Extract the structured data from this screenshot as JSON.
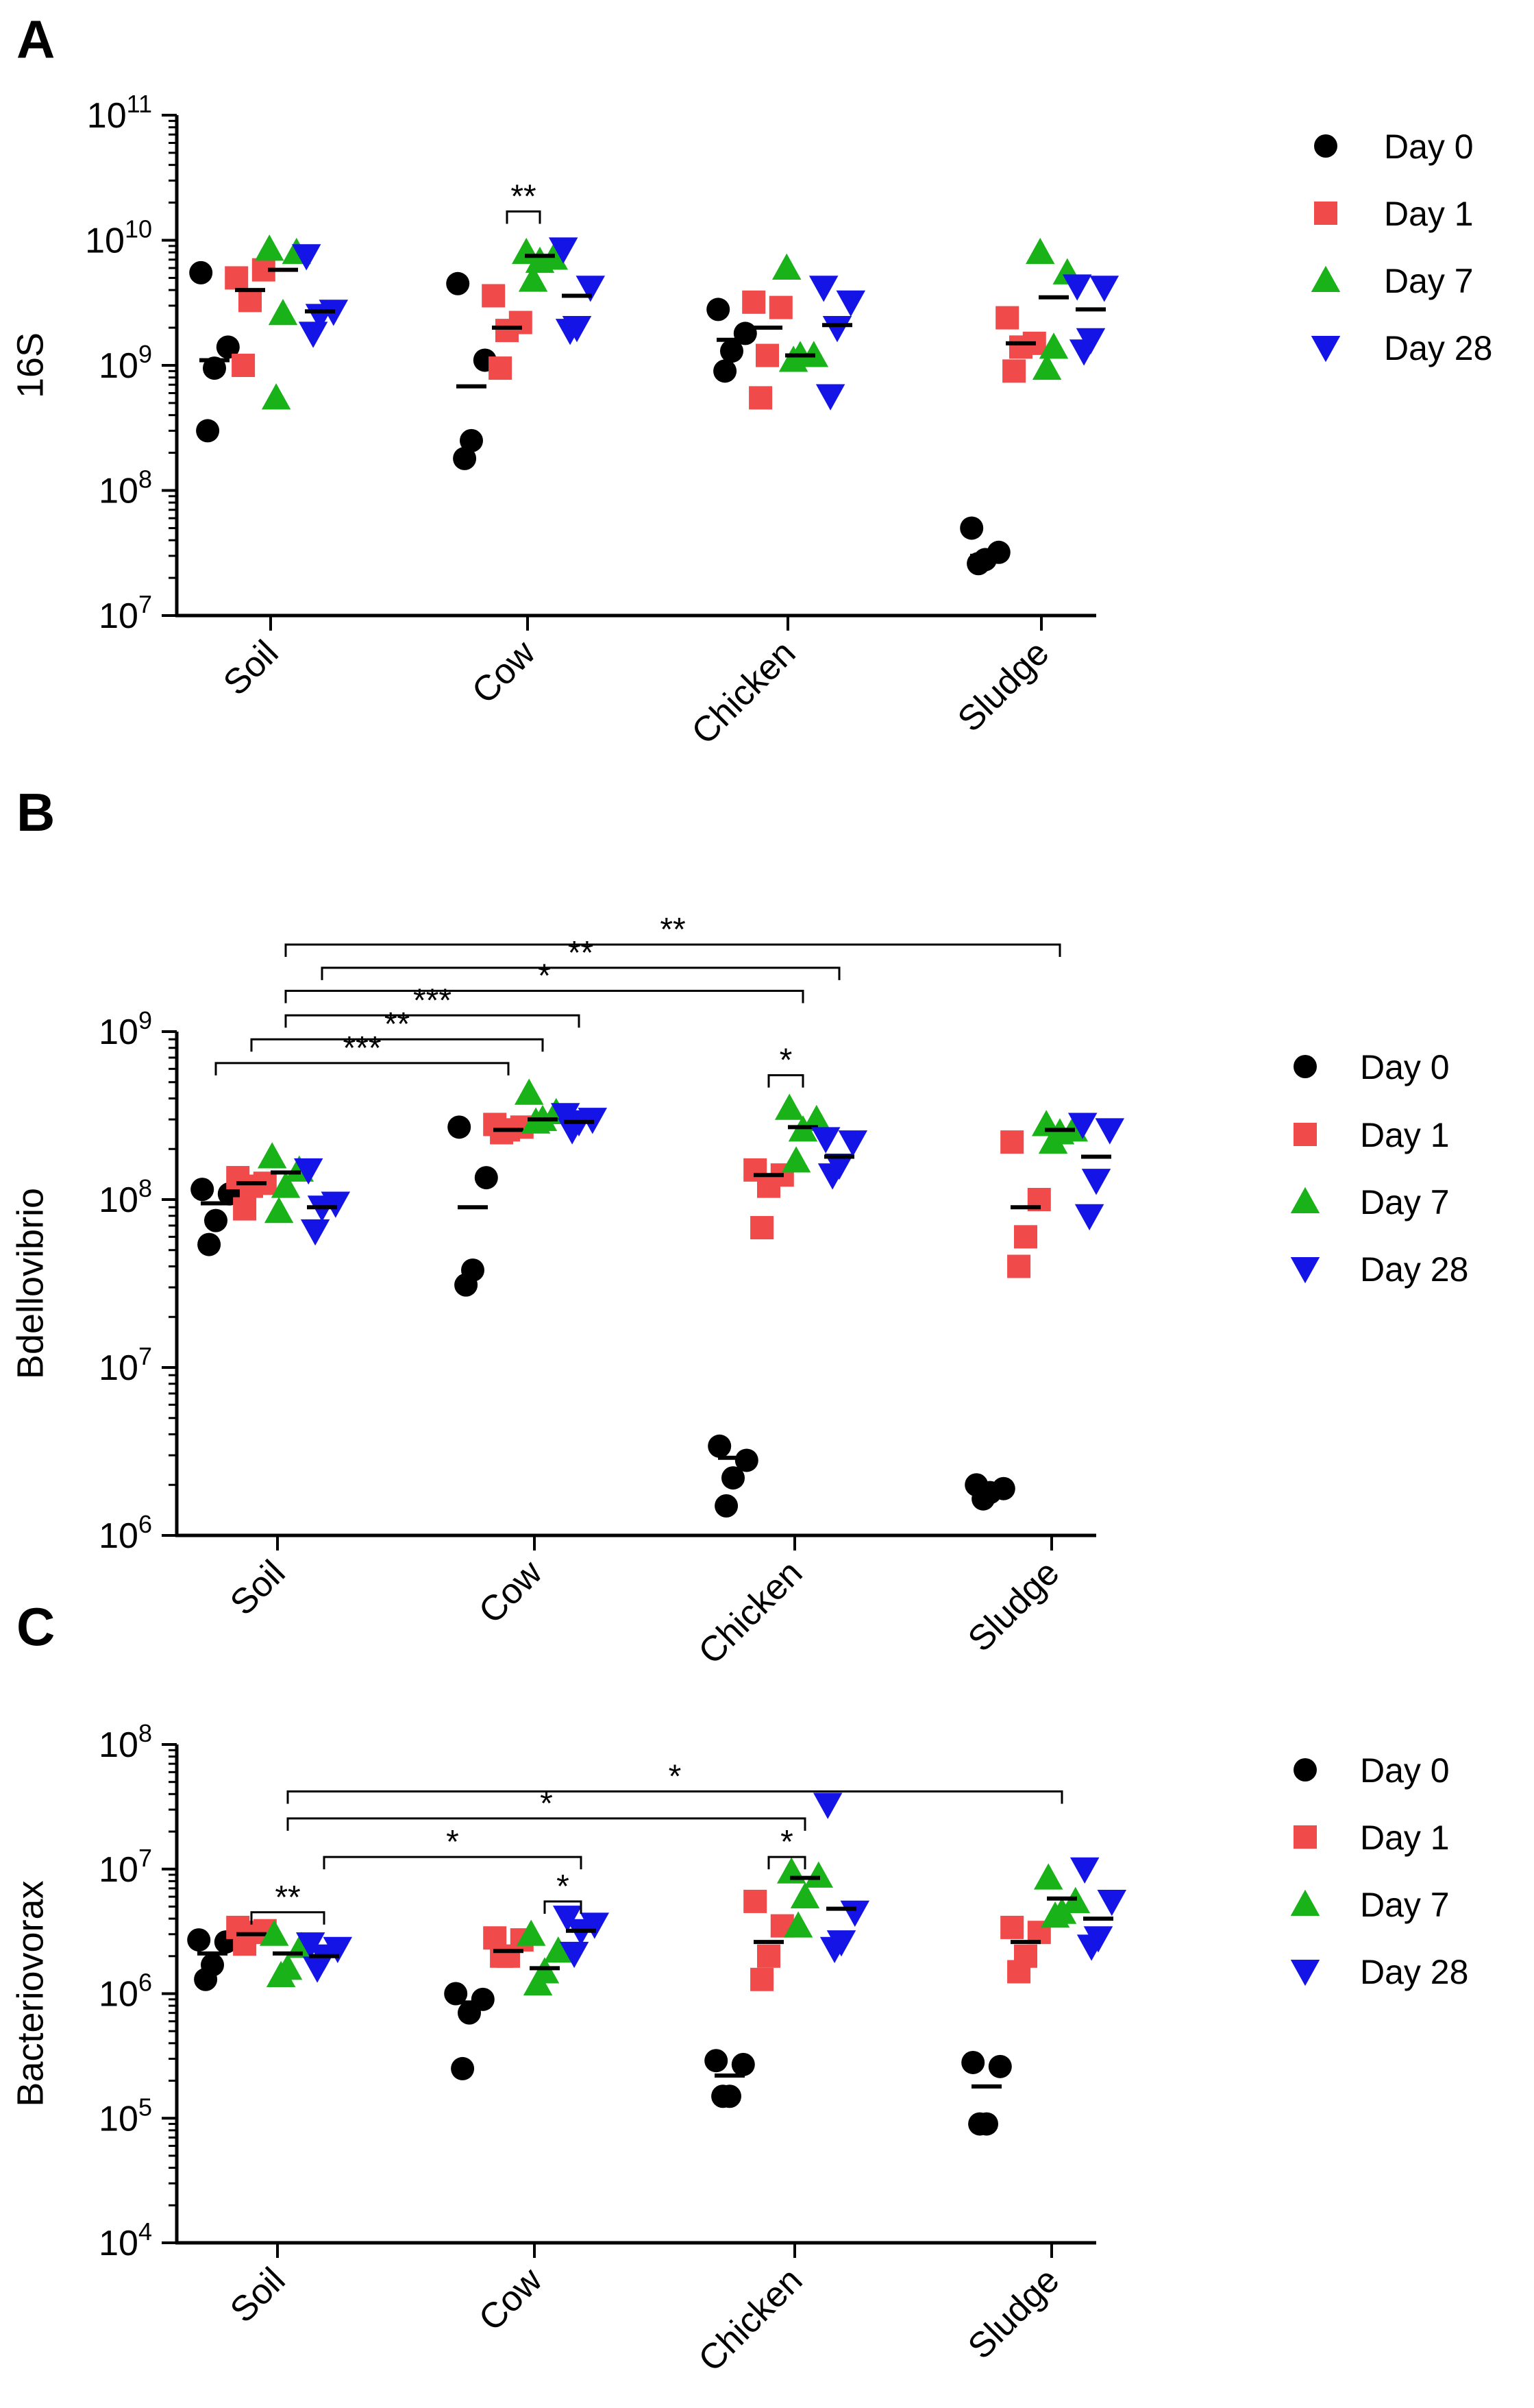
{
  "groups": [
    "Day 0",
    "Day 1",
    "Day 7",
    "Day 28"
  ],
  "colors": {
    "Day 0": "#000000",
    "Day 1": "#F04A4A",
    "Day 7": "#19B219",
    "Day 28": "#1414E6"
  },
  "markers": {
    "Day 0": "circle",
    "Day 1": "square",
    "Day 7": "triangle-up",
    "Day 28": "triangle-down"
  },
  "chart_data": [
    {
      "panel": "A",
      "type": "scatter",
      "ylabel": "16S",
      "yscale": "log",
      "ylim_exp": [
        7,
        11
      ],
      "categories": [
        "Soil",
        "Cow",
        "Chicken",
        "Sludge"
      ],
      "series": [
        {
          "name": "Day 0",
          "points": [
            [
              5500000000.0,
              1400000000.0,
              950000000.0,
              300000000.0
            ],
            [
              4500000000.0,
              1100000000.0,
              250000000.0,
              180000000.0
            ],
            [
              2800000000.0,
              1800000000.0,
              1300000000.0,
              900000000.0
            ],
            [
              50000000.0,
              32000000.0,
              28000000.0,
              26000000.0
            ]
          ],
          "means": [
            1100000000.0,
            680000000.0,
            1600000000.0,
            30000000.0
          ]
        },
        {
          "name": "Day 1",
          "points": [
            [
              5000000000.0,
              5800000000.0,
              3300000000.0,
              1000000000.0
            ],
            [
              3600000000.0,
              2200000000.0,
              1900000000.0,
              950000000.0
            ],
            [
              3200000000.0,
              2900000000.0,
              1200000000.0,
              550000000.0
            ],
            [
              2400000000.0,
              1500000000.0,
              1400000000.0,
              900000000.0
            ]
          ],
          "means": [
            4000000000.0,
            2000000000.0,
            2000000000.0,
            1500000000.0
          ]
        },
        {
          "name": "Day 7",
          "points": [
            [
              8500000000.0,
              8000000000.0,
              2600000000.0,
              550000000.0
            ],
            [
              8000000000.0,
              7200000000.0,
              6800000000.0,
              4800000000.0
            ],
            [
              6000000000.0,
              1200000000.0,
              1200000000.0,
              1100000000.0
            ],
            [
              8000000000.0,
              5500000000.0,
              1400000000.0,
              950000000.0
            ]
          ],
          "means": [
            5800000000.0,
            7500000000.0,
            1200000000.0,
            3500000000.0
          ]
        },
        {
          "name": "Day 28",
          "points": [
            [
              7500000000.0,
              2700000000.0,
              2500000000.0,
              1800000000.0
            ],
            [
              8500000000.0,
              4200000000.0,
              2000000000.0,
              1900000000.0
            ],
            [
              4200000000.0,
              3200000000.0,
              2000000000.0,
              570000000.0
            ],
            [
              4300000000.0,
              4200000000.0,
              1600000000.0,
              1300000000.0
            ]
          ],
          "means": [
            2700000000.0,
            3600000000.0,
            2100000000.0,
            2800000000.0
          ]
        }
      ],
      "ytick_labels": [
        {
          "base": "10",
          "exp": "7"
        },
        {
          "base": "10",
          "exp": "8"
        },
        {
          "base": "10",
          "exp": "9"
        },
        {
          "base": "10",
          "exp": "10"
        },
        {
          "base": "10",
          "exp": "11"
        }
      ],
      "significance": [
        {
          "from": [
            1,
            "Day 1"
          ],
          "to": [
            1,
            "Day 7"
          ],
          "label": "**",
          "y": 17000000000.0
        }
      ]
    },
    {
      "panel": "B",
      "type": "scatter",
      "ylabel": "Bdellovibrio",
      "yscale": "log",
      "ylim_exp": [
        6,
        9
      ],
      "categories": [
        "Soil",
        "Cow",
        "Chicken",
        "Sludge"
      ],
      "series": [
        {
          "name": "Day 0",
          "points": [
            [
              115000000.0,
              108000000.0,
              75000000.0,
              54000000.0
            ],
            [
              270000000.0,
              135000000.0,
              38000000.0,
              31000000.0
            ],
            [
              3400000.0,
              2800000.0,
              2200000.0,
              1500000.0
            ],
            [
              2000000.0,
              1900000.0,
              1800000.0,
              1650000.0
            ]
          ],
          "means": [
            95000000.0,
            90000000.0,
            2900000.0,
            1800000.0
          ]
        },
        {
          "name": "Day 1",
          "points": [
            [
              135000000.0,
              125000000.0,
              120000000.0,
              88000000.0
            ],
            [
              280000000.0,
              270000000.0,
              260000000.0,
              250000000.0
            ],
            [
              150000000.0,
              140000000.0,
              120000000.0,
              68000000.0
            ],
            [
              220000000.0,
              100000000.0,
              60000000.0,
              40000000.0
            ]
          ],
          "means": [
            125000000.0,
            260000000.0,
            140000000.0,
            90000000.0
          ]
        },
        {
          "name": "Day 7",
          "points": [
            [
              180000000.0,
              150000000.0,
              120000000.0,
              85000000.0
            ],
            [
              430000000.0,
              330000000.0,
              300000000.0,
              290000000.0
            ],
            [
              350000000.0,
              300000000.0,
              260000000.0,
              170000000.0
            ],
            [
              280000000.0,
              260000000.0,
              250000000.0,
              220000000.0
            ]
          ],
          "means": [
            145000000.0,
            300000000.0,
            270000000.0,
            260000000.0
          ]
        },
        {
          "name": "Day 28",
          "points": [
            [
              150000000.0,
              95000000.0,
              90000000.0,
              65000000.0
            ],
            [
              320000000.0,
              300000000.0,
              290000000.0,
              260000000.0
            ],
            [
              230000000.0,
              220000000.0,
              160000000.0,
              140000000.0
            ],
            [
              280000000.0,
              260000000.0,
              130000000.0,
              80000000.0
            ]
          ],
          "means": [
            90000000.0,
            290000000.0,
            180000000.0,
            180000000.0
          ]
        }
      ],
      "ytick_labels": [
        {
          "base": "10",
          "exp": "6"
        },
        {
          "base": "10",
          "exp": "7"
        },
        {
          "base": "10",
          "exp": "8"
        },
        {
          "base": "10",
          "exp": "9"
        }
      ],
      "significance": [
        {
          "from": [
            0,
            "Day 0"
          ],
          "to": [
            1,
            "Day 1"
          ],
          "label": "***",
          "y": 650000000.0
        },
        {
          "from": [
            0,
            "Day 1"
          ],
          "to": [
            1,
            "Day 7"
          ],
          "label": "**",
          "y": 900000000.0
        },
        {
          "from": [
            0,
            "Day 7"
          ],
          "to": [
            1,
            "Day 28"
          ],
          "label": "***",
          "y": 1250000000.0
        },
        {
          "from": [
            0,
            "Day 7"
          ],
          "to": [
            2,
            "Day 7"
          ],
          "label": "*",
          "y": 1750000000.0
        },
        {
          "from": [
            0,
            "Day 28"
          ],
          "to": [
            2,
            "Day 28"
          ],
          "label": "**",
          "y": 2400000000.0
        },
        {
          "from": [
            0,
            "Day 7"
          ],
          "to": [
            3,
            "Day 7"
          ],
          "label": "**",
          "y": 3300000000.0
        },
        {
          "from": [
            2,
            "Day 1"
          ],
          "to": [
            2,
            "Day 7"
          ],
          "label": "*",
          "y": 550000000.0
        }
      ]
    },
    {
      "panel": "C",
      "type": "scatter",
      "ylabel": "Bacteriovorax",
      "yscale": "log",
      "ylim_exp": [
        4,
        8
      ],
      "categories": [
        "Soil",
        "Cow",
        "Chicken",
        "Sludge"
      ],
      "series": [
        {
          "name": "Day 0",
          "points": [
            [
              2700000.0,
              2600000.0,
              1700000.0,
              1300000.0
            ],
            [
              1000000.0,
              900000.0,
              700000.0,
              250000.0
            ],
            [
              290000.0,
              270000.0,
              150000.0,
              150000.0
            ],
            [
              280000.0,
              260000.0,
              90000.0,
              90000.0
            ]
          ],
          "means": [
            2100000.0,
            850000.0,
            220000.0,
            180000.0
          ]
        },
        {
          "name": "Day 1",
          "points": [
            [
              3400000.0,
              3200000.0,
              3100000.0,
              2500000.0
            ],
            [
              2800000.0,
              2700000.0,
              2000000.0,
              2000000.0
            ],
            [
              5500000.0,
              3500000.0,
              2000000.0,
              1300000.0
            ],
            [
              3400000.0,
              3100000.0,
              2000000.0,
              1500000.0
            ]
          ],
          "means": [
            3000000.0,
            2200000.0,
            2600000.0,
            2600000.0
          ]
        },
        {
          "name": "Day 7",
          "points": [
            [
              3000000.0,
              2400000.0,
              1600000.0,
              1400000.0
            ],
            [
              3000000.0,
              2200000.0,
              1500000.0,
              1200000.0
            ],
            [
              9500000.0,
              8800000.0,
              6000000.0,
              3500000.0
            ],
            [
              8500000.0,
              5500000.0,
              4500000.0,
              4200000.0
            ]
          ],
          "means": [
            2100000.0,
            1600000.0,
            8500000.0,
            5800000.0
          ]
        },
        {
          "name": "Day 28",
          "points": [
            [
              2500000.0,
              2300000.0,
              2000000.0,
              1600000.0
            ],
            [
              4100000.0,
              3600000.0,
              3200000.0,
              2100000.0
            ],
            [
              33000000.0,
              4500000.0,
              2600000.0,
              2300000.0
            ],
            [
              10000000.0,
              5500000.0,
              2800000.0,
              2400000.0
            ]
          ],
          "means": [
            2000000.0,
            3200000.0,
            4800000.0,
            4000000.0
          ]
        }
      ],
      "ytick_labels": [
        {
          "base": "10",
          "exp": "4"
        },
        {
          "base": "10",
          "exp": "5"
        },
        {
          "base": "10",
          "exp": "6"
        },
        {
          "base": "10",
          "exp": "7"
        },
        {
          "base": "10",
          "exp": "8"
        }
      ],
      "significance": [
        {
          "from": [
            0,
            "Day 1"
          ],
          "to": [
            0,
            "Day 28"
          ],
          "label": "**",
          "y": 4500000.0
        },
        {
          "from": [
            1,
            "Day 7"
          ],
          "to": [
            1,
            "Day 28"
          ],
          "label": "*",
          "y": 5500000.0
        },
        {
          "from": [
            0,
            "Day 28"
          ],
          "to": [
            1,
            "Day 28"
          ],
          "label": "*",
          "y": 12500000.0
        },
        {
          "from": [
            2,
            "Day 1"
          ],
          "to": [
            2,
            "Day 7"
          ],
          "label": "*",
          "y": 12500000.0
        },
        {
          "from": [
            0,
            "Day 7"
          ],
          "to": [
            2,
            "Day 7"
          ],
          "label": "*",
          "y": 25500000.0
        },
        {
          "from": [
            0,
            "Day 7"
          ],
          "to": [
            3,
            "Day 7"
          ],
          "label": "*",
          "y": 42000000.0
        }
      ]
    }
  ]
}
